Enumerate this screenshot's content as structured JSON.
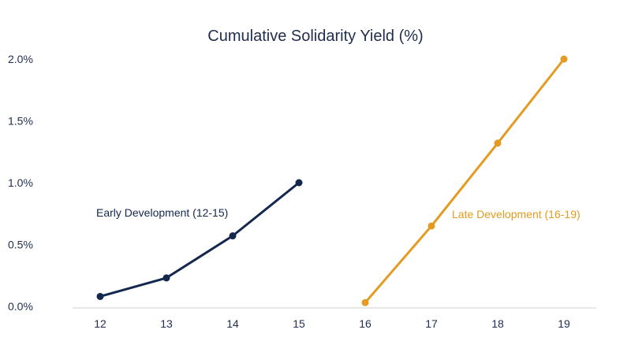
{
  "chart_data": {
    "type": "line",
    "title": "Cumulative Solidarity Yield (%)",
    "xlabel": "",
    "ylabel": "",
    "x_ticks": [
      "12",
      "13",
      "14",
      "15",
      "16",
      "17",
      "18",
      "19"
    ],
    "y_ticks": [
      "0.0%",
      "0.5%",
      "1.0%",
      "1.5%",
      "2.0%"
    ],
    "ylim": [
      0,
      2.0
    ],
    "xlim": [
      12,
      19
    ],
    "grid": false,
    "series": [
      {
        "name": "Early Development (12-15)",
        "color": "#14274e",
        "x": [
          12,
          13,
          14,
          15
        ],
        "y": [
          0.08,
          0.23,
          0.57,
          1.0
        ]
      },
      {
        "name": "Late Development (16-19)",
        "color": "#e39b22",
        "x": [
          16,
          17,
          18,
          19
        ],
        "y": [
          0.03,
          0.65,
          1.32,
          2.0
        ]
      }
    ]
  }
}
